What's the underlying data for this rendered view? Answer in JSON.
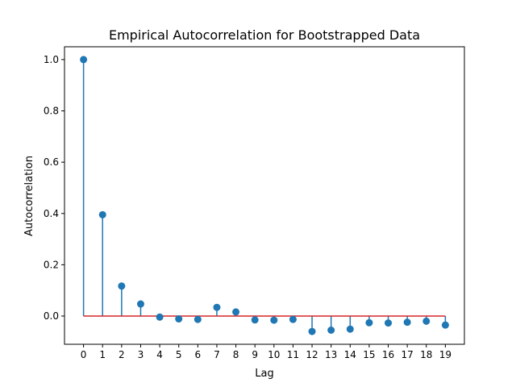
{
  "chart_data": {
    "type": "stem",
    "title": "Empirical Autocorrelation for Bootstrapped Data",
    "xlabel": "Lag",
    "ylabel": "Autocorrelation",
    "xlim": [
      -1,
      20
    ],
    "ylim": [
      -0.11,
      1.05
    ],
    "xticks": [
      0,
      1,
      2,
      3,
      4,
      5,
      6,
      7,
      8,
      9,
      10,
      11,
      12,
      13,
      14,
      15,
      16,
      17,
      18,
      19
    ],
    "yticks": [
      0.0,
      0.2,
      0.4,
      0.6,
      0.8,
      1.0
    ],
    "ytick_labels": [
      "0.0",
      "0.2",
      "0.4",
      "0.6",
      "0.8",
      "1.0"
    ],
    "grid": false,
    "x": [
      0,
      1,
      2,
      3,
      4,
      5,
      6,
      7,
      8,
      9,
      10,
      11,
      12,
      13,
      14,
      15,
      16,
      17,
      18,
      19
    ],
    "values": [
      1.0,
      0.395,
      0.117,
      0.047,
      -0.004,
      -0.011,
      -0.013,
      0.034,
      0.016,
      -0.015,
      -0.016,
      -0.013,
      -0.06,
      -0.055,
      -0.051,
      -0.026,
      -0.027,
      -0.024,
      -0.02,
      -0.035
    ],
    "colors": {
      "stem": "#1f77b4",
      "marker": "#1f77b4",
      "baseline": "#d62728"
    }
  }
}
